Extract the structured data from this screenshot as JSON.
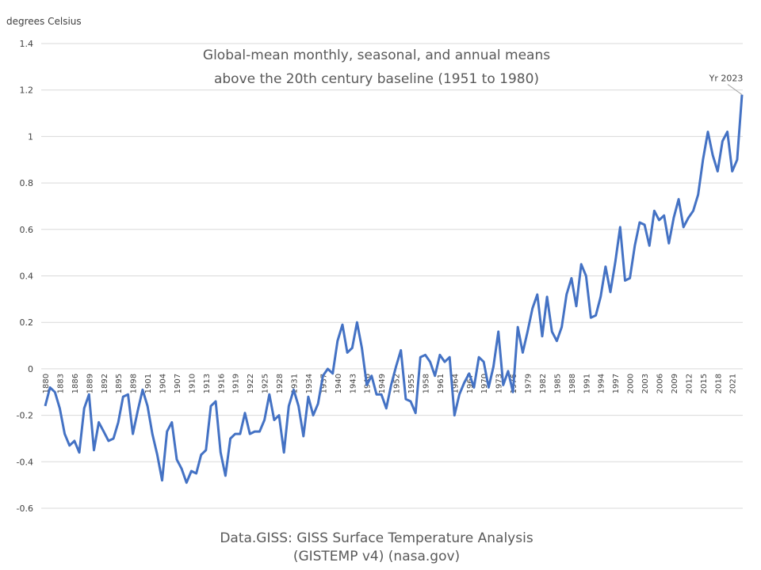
{
  "chart_data": {
    "type": "line",
    "ylabel": "degrees Celsius",
    "title_lines": [
      "Global-mean monthly, seasonal, and annual means",
      "above the 20th century baseline (1951 to 1980)"
    ],
    "source_lines": [
      "Data.GISS: GISS Surface Temperature Analysis",
      "(GISTEMP v4) (nasa.gov)"
    ],
    "annotation": "Yr 2023",
    "ylim": [
      -0.6,
      1.4
    ],
    "yticks": [
      "1.4",
      "1.2",
      "1",
      "0.8",
      "0.6",
      "0.4",
      "0.2",
      "0",
      "-0.2",
      "-0.4",
      "-0.6"
    ],
    "xlim": [
      1880,
      2023
    ],
    "xticks": [
      1880,
      1883,
      1886,
      1889,
      1892,
      1895,
      1898,
      1901,
      1904,
      1907,
      1910,
      1913,
      1916,
      1919,
      1922,
      1925,
      1928,
      1931,
      1934,
      1937,
      1940,
      1943,
      1946,
      1949,
      1952,
      1955,
      1958,
      1961,
      1964,
      1967,
      1970,
      1973,
      1976,
      1979,
      1982,
      1985,
      1988,
      1991,
      1994,
      1997,
      2000,
      2003,
      2006,
      2009,
      2012,
      2015,
      2018,
      2021
    ],
    "grid": true,
    "line_color": "#4472c4",
    "series": [
      {
        "x_start": 1880,
        "values": [
          -0.16,
          -0.08,
          -0.1,
          -0.17,
          -0.28,
          -0.33,
          -0.31,
          -0.36,
          -0.17,
          -0.11,
          -0.35,
          -0.23,
          -0.27,
          -0.31,
          -0.3,
          -0.23,
          -0.12,
          -0.11,
          -0.28,
          -0.18,
          -0.09,
          -0.16,
          -0.28,
          -0.37,
          -0.48,
          -0.27,
          -0.23,
          -0.39,
          -0.43,
          -0.49,
          -0.44,
          -0.45,
          -0.37,
          -0.35,
          -0.16,
          -0.14,
          -0.36,
          -0.46,
          -0.3,
          -0.28,
          -0.28,
          -0.19,
          -0.28,
          -0.27,
          -0.27,
          -0.22,
          -0.11,
          -0.22,
          -0.2,
          -0.36,
          -0.16,
          -0.09,
          -0.16,
          -0.29,
          -0.12,
          -0.2,
          -0.15,
          -0.03,
          0.0,
          -0.02,
          0.12,
          0.19,
          0.07,
          0.09,
          0.2,
          0.09,
          -0.07,
          -0.03,
          -0.11,
          -0.11,
          -0.17,
          -0.07,
          0.01,
          0.08,
          -0.13,
          -0.14,
          -0.19,
          0.05,
          0.06,
          0.03,
          -0.03,
          0.06,
          0.03,
          0.05,
          -0.2,
          -0.11,
          -0.06,
          -0.02,
          -0.08,
          0.05,
          0.03,
          -0.08,
          0.01,
          0.16,
          -0.07,
          -0.01,
          -0.1,
          0.18,
          0.07,
          0.16,
          0.26,
          0.32,
          0.14,
          0.31,
          0.16,
          0.12,
          0.18,
          0.32,
          0.39,
          0.27,
          0.45,
          0.4,
          0.22,
          0.23,
          0.31,
          0.44,
          0.33,
          0.46,
          0.61,
          0.38,
          0.39,
          0.53,
          0.63,
          0.62,
          0.53,
          0.68,
          0.64,
          0.66,
          0.54,
          0.65,
          0.73,
          0.61,
          0.65,
          0.68,
          0.75,
          0.9,
          1.02,
          0.92,
          0.85,
          0.98,
          1.02,
          0.85,
          0.9,
          1.18
        ]
      }
    ]
  }
}
